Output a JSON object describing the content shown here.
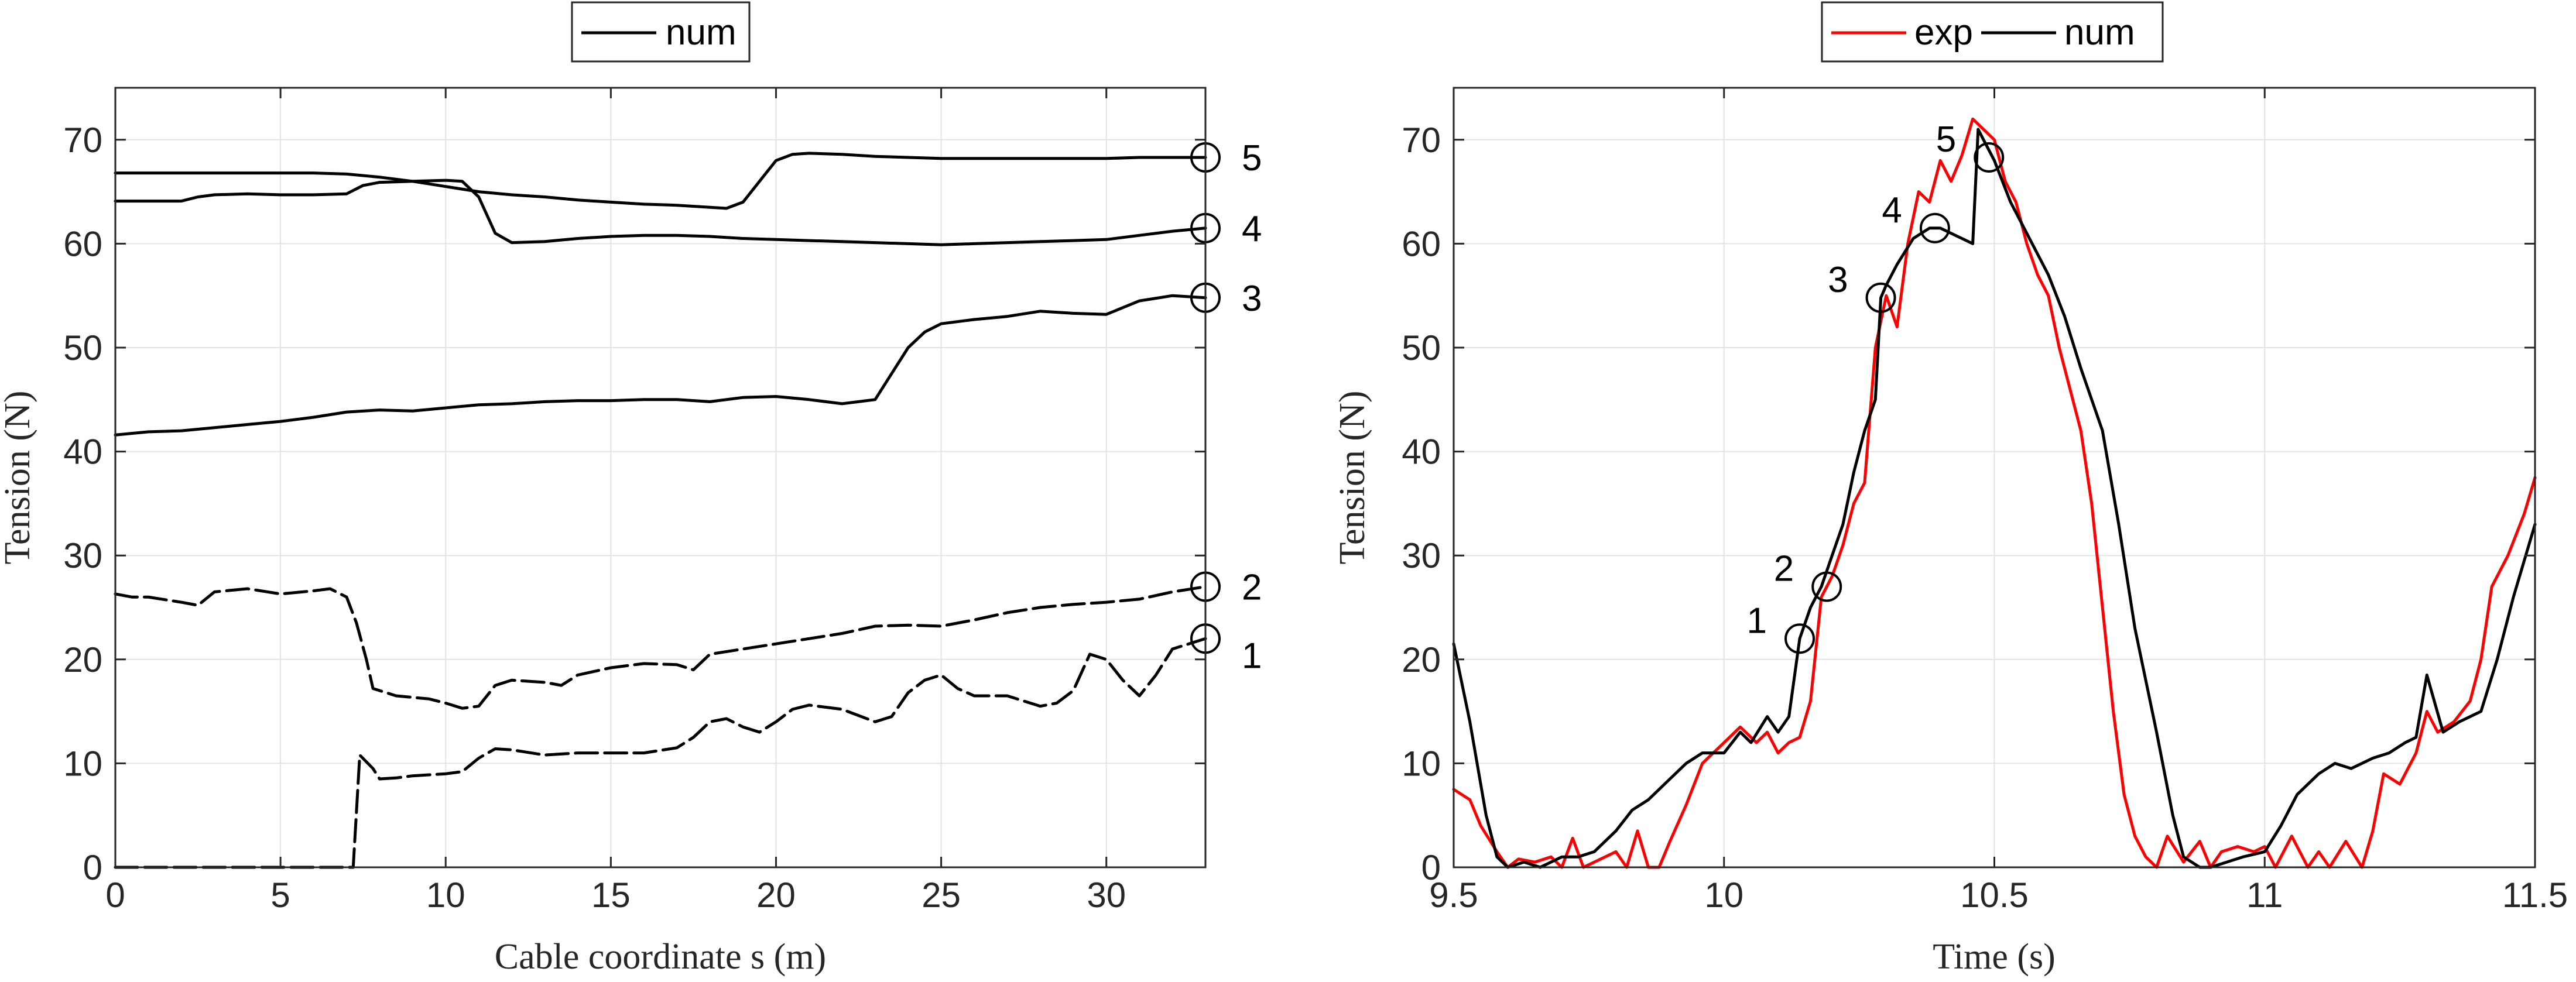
{
  "chart_data": [
    {
      "type": "line",
      "xlabel": "Cable coordinate s (m)",
      "ylabel": "Tension (N)",
      "xlim": [
        0,
        33
      ],
      "ylim": [
        0,
        75
      ],
      "xticks": [
        0,
        5,
        10,
        15,
        20,
        25,
        30
      ],
      "yticks": [
        0,
        10,
        20,
        30,
        40,
        50,
        60,
        70
      ],
      "grid": true,
      "legend": {
        "entries": [
          "num"
        ],
        "placement": "top-center-outside"
      },
      "series_color": "#000000",
      "series": [
        {
          "id": "snapshot-1",
          "marker_label": "1",
          "dashed": true,
          "x": [
            0,
            1,
            2,
            3,
            4,
            5,
            6,
            7.2,
            7.4,
            7.8,
            8,
            8.5,
            9,
            10,
            10.5,
            11,
            11.5,
            12,
            13,
            14,
            15,
            16,
            17,
            17.5,
            18,
            18.5,
            19,
            19.5,
            20,
            20.5,
            21,
            22,
            23,
            23.5,
            24,
            24.5,
            25,
            25.5,
            26,
            27,
            28,
            28.5,
            29,
            29.5,
            30,
            30.5,
            31,
            31.5,
            32,
            33
          ],
          "y": [
            0,
            0,
            0,
            0,
            0,
            0,
            0,
            0,
            10.8,
            9.5,
            8.5,
            8.6,
            8.8,
            9.0,
            9.2,
            10.5,
            11.4,
            11.3,
            10.8,
            11.0,
            11.0,
            11.0,
            11.5,
            12.5,
            14.0,
            14.3,
            13.5,
            13.0,
            14.0,
            15.2,
            15.6,
            15.2,
            14.0,
            14.5,
            16.8,
            18.0,
            18.5,
            17.2,
            16.5,
            16.5,
            15.5,
            15.8,
            17.0,
            20.5,
            20.0,
            18.0,
            16.5,
            18.5,
            21.0,
            22.0
          ]
        },
        {
          "id": "snapshot-2",
          "marker_label": "2",
          "dashed": true,
          "x": [
            0,
            0.5,
            1,
            2,
            2.5,
            3,
            4,
            5,
            6,
            6.5,
            7,
            7.3,
            7.6,
            7.8,
            8.5,
            9.5,
            10,
            10.5,
            11,
            11.5,
            12,
            13,
            13.5,
            14,
            15,
            16,
            17,
            17.5,
            18,
            19,
            20,
            21,
            22,
            23,
            24,
            25,
            26,
            27,
            28,
            29,
            30,
            31,
            32,
            33
          ],
          "y": [
            26.3,
            26.0,
            26.0,
            25.5,
            25.2,
            26.5,
            26.8,
            26.3,
            26.6,
            26.8,
            26.0,
            23.5,
            20.0,
            17.2,
            16.5,
            16.2,
            15.8,
            15.3,
            15.5,
            17.5,
            18.0,
            17.8,
            17.5,
            18.5,
            19.2,
            19.6,
            19.5,
            19.0,
            20.5,
            21.0,
            21.5,
            22.0,
            22.5,
            23.2,
            23.3,
            23.2,
            23.8,
            24.5,
            25.0,
            25.3,
            25.5,
            25.8,
            26.5,
            27.0
          ]
        },
        {
          "id": "snapshot-3",
          "marker_label": "3",
          "dashed": false,
          "x": [
            0,
            1,
            2,
            3,
            4,
            5,
            6,
            7,
            8,
            9,
            10,
            11,
            12,
            13,
            14,
            15,
            16,
            17,
            18,
            19,
            20,
            21,
            22,
            23,
            23.5,
            24,
            24.5,
            25,
            26,
            27,
            28,
            29,
            30,
            31,
            32,
            33
          ],
          "y": [
            41.6,
            41.9,
            42.0,
            42.3,
            42.6,
            42.9,
            43.3,
            43.8,
            44.0,
            43.9,
            44.2,
            44.5,
            44.6,
            44.8,
            44.9,
            44.9,
            45.0,
            45.0,
            44.8,
            45.2,
            45.3,
            45.0,
            44.6,
            45.0,
            47.5,
            50.0,
            51.5,
            52.3,
            52.7,
            53.0,
            53.5,
            53.3,
            53.2,
            54.5,
            55.0,
            54.8
          ]
        },
        {
          "id": "snapshot-4",
          "marker_label": "4",
          "dashed": false,
          "x": [
            0,
            1,
            2,
            2.5,
            3,
            4,
            5,
            6,
            7,
            7.5,
            8,
            9,
            10,
            10.5,
            11,
            11.5,
            12,
            13,
            14,
            15,
            16,
            17,
            18,
            19,
            20,
            21,
            22,
            23,
            24,
            25,
            26,
            27,
            28,
            29,
            30,
            31,
            32,
            33
          ],
          "y": [
            64.1,
            64.1,
            64.1,
            64.5,
            64.7,
            64.8,
            64.7,
            64.7,
            64.8,
            65.6,
            65.9,
            66.0,
            66.1,
            66.0,
            64.5,
            61.0,
            60.1,
            60.2,
            60.5,
            60.7,
            60.8,
            60.8,
            60.7,
            60.5,
            60.4,
            60.3,
            60.2,
            60.1,
            60.0,
            59.9,
            60.0,
            60.1,
            60.2,
            60.3,
            60.4,
            60.8,
            61.2,
            61.5
          ]
        },
        {
          "id": "snapshot-5",
          "marker_label": "5",
          "dashed": false,
          "x": [
            0,
            1,
            2,
            3,
            4,
            5,
            6,
            7,
            8,
            9,
            10,
            11,
            12,
            13,
            14,
            15,
            16,
            17,
            18,
            18.5,
            19,
            19.5,
            20,
            20.5,
            21,
            22,
            23,
            24,
            25,
            26,
            27,
            28,
            29,
            30,
            31,
            32,
            33
          ],
          "y": [
            66.8,
            66.8,
            66.8,
            66.8,
            66.8,
            66.8,
            66.8,
            66.7,
            66.4,
            66.0,
            65.5,
            65.0,
            64.7,
            64.5,
            64.2,
            64.0,
            63.8,
            63.7,
            63.5,
            63.4,
            64.0,
            66.0,
            68.0,
            68.6,
            68.7,
            68.6,
            68.4,
            68.3,
            68.2,
            68.2,
            68.2,
            68.2,
            68.2,
            68.2,
            68.3,
            68.3,
            68.3
          ]
        }
      ],
      "markers": [
        {
          "label": "1",
          "x": 33,
          "y": 22.0
        },
        {
          "label": "2",
          "x": 33,
          "y": 27.0
        },
        {
          "label": "3",
          "x": 33,
          "y": 54.8
        },
        {
          "label": "4",
          "x": 33,
          "y": 61.5
        },
        {
          "label": "5",
          "x": 33,
          "y": 68.3
        }
      ]
    },
    {
      "type": "line",
      "xlabel": "Time (s)",
      "ylabel": "Tension (N)",
      "xlim": [
        9.5,
        11.5
      ],
      "ylim": [
        0,
        75
      ],
      "xticks": [
        9.5,
        10,
        10.5,
        11,
        11.5
      ],
      "yticks": [
        0,
        10,
        20,
        30,
        40,
        50,
        60,
        70
      ],
      "grid": true,
      "legend": {
        "entries": [
          "exp",
          "num"
        ],
        "placement": "top-center-outside"
      },
      "series": [
        {
          "name": "exp",
          "color": "#ff0000",
          "x": [
            9.5,
            9.53,
            9.55,
            9.58,
            9.6,
            9.62,
            9.65,
            9.68,
            9.7,
            9.72,
            9.74,
            9.76,
            9.8,
            9.82,
            9.84,
            9.86,
            9.88,
            9.9,
            9.93,
            9.96,
            10.0,
            10.03,
            10.06,
            10.08,
            10.1,
            10.12,
            10.14,
            10.16,
            10.18,
            10.2,
            10.22,
            10.24,
            10.26,
            10.28,
            10.3,
            10.32,
            10.34,
            10.36,
            10.38,
            10.4,
            10.42,
            10.44,
            10.46,
            10.48,
            10.5,
            10.52,
            10.54,
            10.56,
            10.58,
            10.6,
            10.62,
            10.64,
            10.66,
            10.68,
            10.7,
            10.72,
            10.74,
            10.76,
            10.78,
            10.8,
            10.82,
            10.85,
            10.88,
            10.9,
            10.92,
            10.95,
            10.98,
            11.0,
            11.02,
            11.05,
            11.08,
            11.1,
            11.12,
            11.15,
            11.18,
            11.2,
            11.22,
            11.25,
            11.28,
            11.3,
            11.32,
            11.35,
            11.38,
            11.4,
            11.42,
            11.45,
            11.48,
            11.5
          ],
          "y": [
            7.5,
            6.5,
            4.0,
            1.5,
            0.0,
            0.8,
            0.5,
            1.0,
            0.0,
            2.8,
            0.0,
            0.5,
            1.5,
            0.0,
            3.5,
            0.0,
            0.0,
            2.5,
            6.0,
            10.0,
            12.0,
            13.5,
            12.0,
            13.0,
            11.0,
            12.0,
            12.5,
            16.0,
            26.0,
            28.0,
            31.0,
            35.0,
            37.0,
            50.0,
            55.0,
            52.0,
            60.0,
            65.0,
            64.0,
            68.0,
            66.0,
            68.5,
            72.0,
            71.0,
            70.0,
            66.0,
            64.0,
            60.0,
            57.0,
            55.0,
            50.0,
            46.0,
            42.0,
            35.0,
            25.0,
            15.0,
            7.0,
            3.0,
            1.0,
            0.0,
            3.0,
            0.5,
            2.5,
            0.0,
            1.5,
            2.0,
            1.5,
            2.0,
            0.0,
            3.0,
            0.0,
            1.5,
            0.0,
            2.5,
            0.0,
            3.5,
            9.0,
            8.0,
            11.0,
            15.0,
            13.0,
            14.0,
            16.0,
            20.0,
            27.0,
            30.0,
            34.0,
            37.5
          ]
        },
        {
          "name": "num",
          "color": "#000000",
          "x": [
            9.5,
            9.53,
            9.56,
            9.58,
            9.6,
            9.63,
            9.66,
            9.7,
            9.73,
            9.76,
            9.8,
            9.83,
            9.86,
            9.9,
            9.93,
            9.96,
            10.0,
            10.03,
            10.05,
            10.08,
            10.1,
            10.12,
            10.14,
            10.16,
            10.18,
            10.2,
            10.22,
            10.24,
            10.26,
            10.28,
            10.29,
            10.3,
            10.32,
            10.35,
            10.38,
            10.4,
            10.42,
            10.44,
            10.46,
            10.47,
            10.48,
            10.5,
            10.53,
            10.56,
            10.6,
            10.63,
            10.66,
            10.7,
            10.73,
            10.76,
            10.8,
            10.83,
            10.85,
            10.88,
            10.9,
            10.93,
            10.96,
            11.0,
            11.03,
            11.06,
            11.1,
            11.13,
            11.16,
            11.2,
            11.23,
            11.26,
            11.28,
            11.3,
            11.33,
            11.36,
            11.4,
            11.43,
            11.46,
            11.5
          ],
          "y": [
            21.5,
            14.0,
            5.0,
            1.0,
            0.0,
            0.5,
            0.0,
            1.0,
            1.0,
            1.5,
            3.5,
            5.5,
            6.5,
            8.5,
            10.0,
            11.0,
            11.0,
            13.0,
            12.0,
            14.5,
            13.0,
            14.5,
            22.0,
            25.0,
            27.0,
            30.0,
            33.0,
            38.0,
            42.0,
            45.0,
            54.8,
            56.0,
            58.0,
            60.5,
            61.5,
            61.5,
            61.0,
            60.5,
            60.0,
            71.0,
            70.0,
            68.0,
            64.0,
            61.0,
            57.0,
            53.0,
            48.0,
            42.0,
            33.0,
            23.0,
            13.0,
            5.0,
            1.0,
            0.0,
            0.0,
            0.5,
            1.0,
            1.5,
            4.0,
            7.0,
            9.0,
            10.0,
            9.5,
            10.5,
            11.0,
            12.0,
            12.5,
            18.5,
            13.0,
            14.0,
            15.0,
            20.0,
            26.0,
            33.0
          ]
        }
      ],
      "markers": [
        {
          "label": "1",
          "x": 10.14,
          "y": 22.0
        },
        {
          "label": "2",
          "x": 10.19,
          "y": 27.0
        },
        {
          "label": "3",
          "x": 10.29,
          "y": 54.8
        },
        {
          "label": "4",
          "x": 10.39,
          "y": 61.5
        },
        {
          "label": "5",
          "x": 10.49,
          "y": 68.3
        }
      ]
    }
  ]
}
